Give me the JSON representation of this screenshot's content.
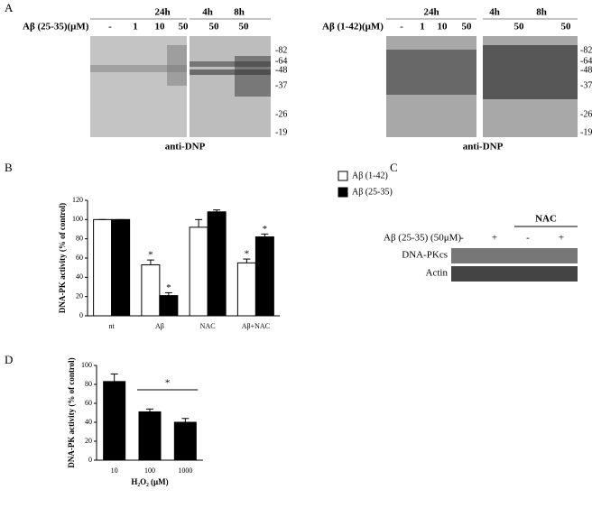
{
  "panel_labels": [
    "A",
    "B",
    "C",
    "D"
  ],
  "panel_a": {
    "blots": [
      {
        "title": "Aβ (25-35)(μM)",
        "groups": [
          {
            "time": "24h",
            "lanes": [
              "-",
              "1",
              "10",
              "50"
            ]
          },
          {
            "time": "4h",
            "lanes": [
              "50"
            ]
          },
          {
            "time": "8h",
            "lanes": [
              "50"
            ]
          }
        ],
        "markers": [
          "-82",
          "-64",
          "-48",
          "-37",
          "-26",
          "-19"
        ],
        "antibody": "anti-DNP"
      },
      {
        "title": "Aβ (1-42)(μM)",
        "groups": [
          {
            "time": "24h",
            "lanes": [
              "-",
              "1",
              "10",
              "50"
            ]
          },
          {
            "time": "4h",
            "lanes": [
              "50"
            ]
          },
          {
            "time": "8h",
            "lanes": [
              "50"
            ]
          }
        ],
        "markers": [
          "-82",
          "-64",
          "-48",
          "-37",
          "-26",
          "-19"
        ],
        "antibody": "anti-DNP"
      }
    ]
  },
  "panel_c": {
    "group": "NAC",
    "treatment": "Aβ (25-35) (50μM)",
    "lanes": [
      "-",
      "+",
      "-",
      "+"
    ],
    "rows": [
      "DNA-PKcs",
      "Actin"
    ]
  },
  "chart_data": [
    {
      "type": "bar",
      "ylabel": "DNA-PK activity (% of control)",
      "categories": [
        "nt",
        "Aβ",
        "NAC",
        "Aβ+NAC"
      ],
      "series": [
        {
          "name": "Aβ (1-42)",
          "color": "#ffffff",
          "values": [
            100,
            53,
            92,
            55
          ],
          "errors": [
            0,
            5,
            8,
            4
          ],
          "labels": [
            null,
            "*",
            null,
            "*"
          ]
        },
        {
          "name": "Aβ (25-35)",
          "color": "#000000",
          "values": [
            100,
            21,
            108,
            82
          ],
          "errors": [
            0,
            3,
            2,
            3
          ],
          "labels": [
            null,
            "*",
            null,
            "*"
          ]
        }
      ],
      "ylim": [
        0,
        120
      ],
      "yticks": [
        0,
        20,
        40,
        60,
        80,
        100,
        120
      ],
      "legend": "top-right"
    },
    {
      "type": "bar",
      "ylabel": "DNA-PK activity (% of control)",
      "xlabel": "H₂O₂ (μM)",
      "categories": [
        "10",
        "100",
        "1000"
      ],
      "series": [
        {
          "color": "#000000",
          "values": [
            83,
            51,
            40
          ],
          "errors": [
            8,
            3,
            4
          ]
        }
      ],
      "annotation": "*",
      "ylim": [
        0,
        100
      ],
      "yticks": [
        0,
        20,
        40,
        60,
        80,
        100
      ]
    }
  ]
}
